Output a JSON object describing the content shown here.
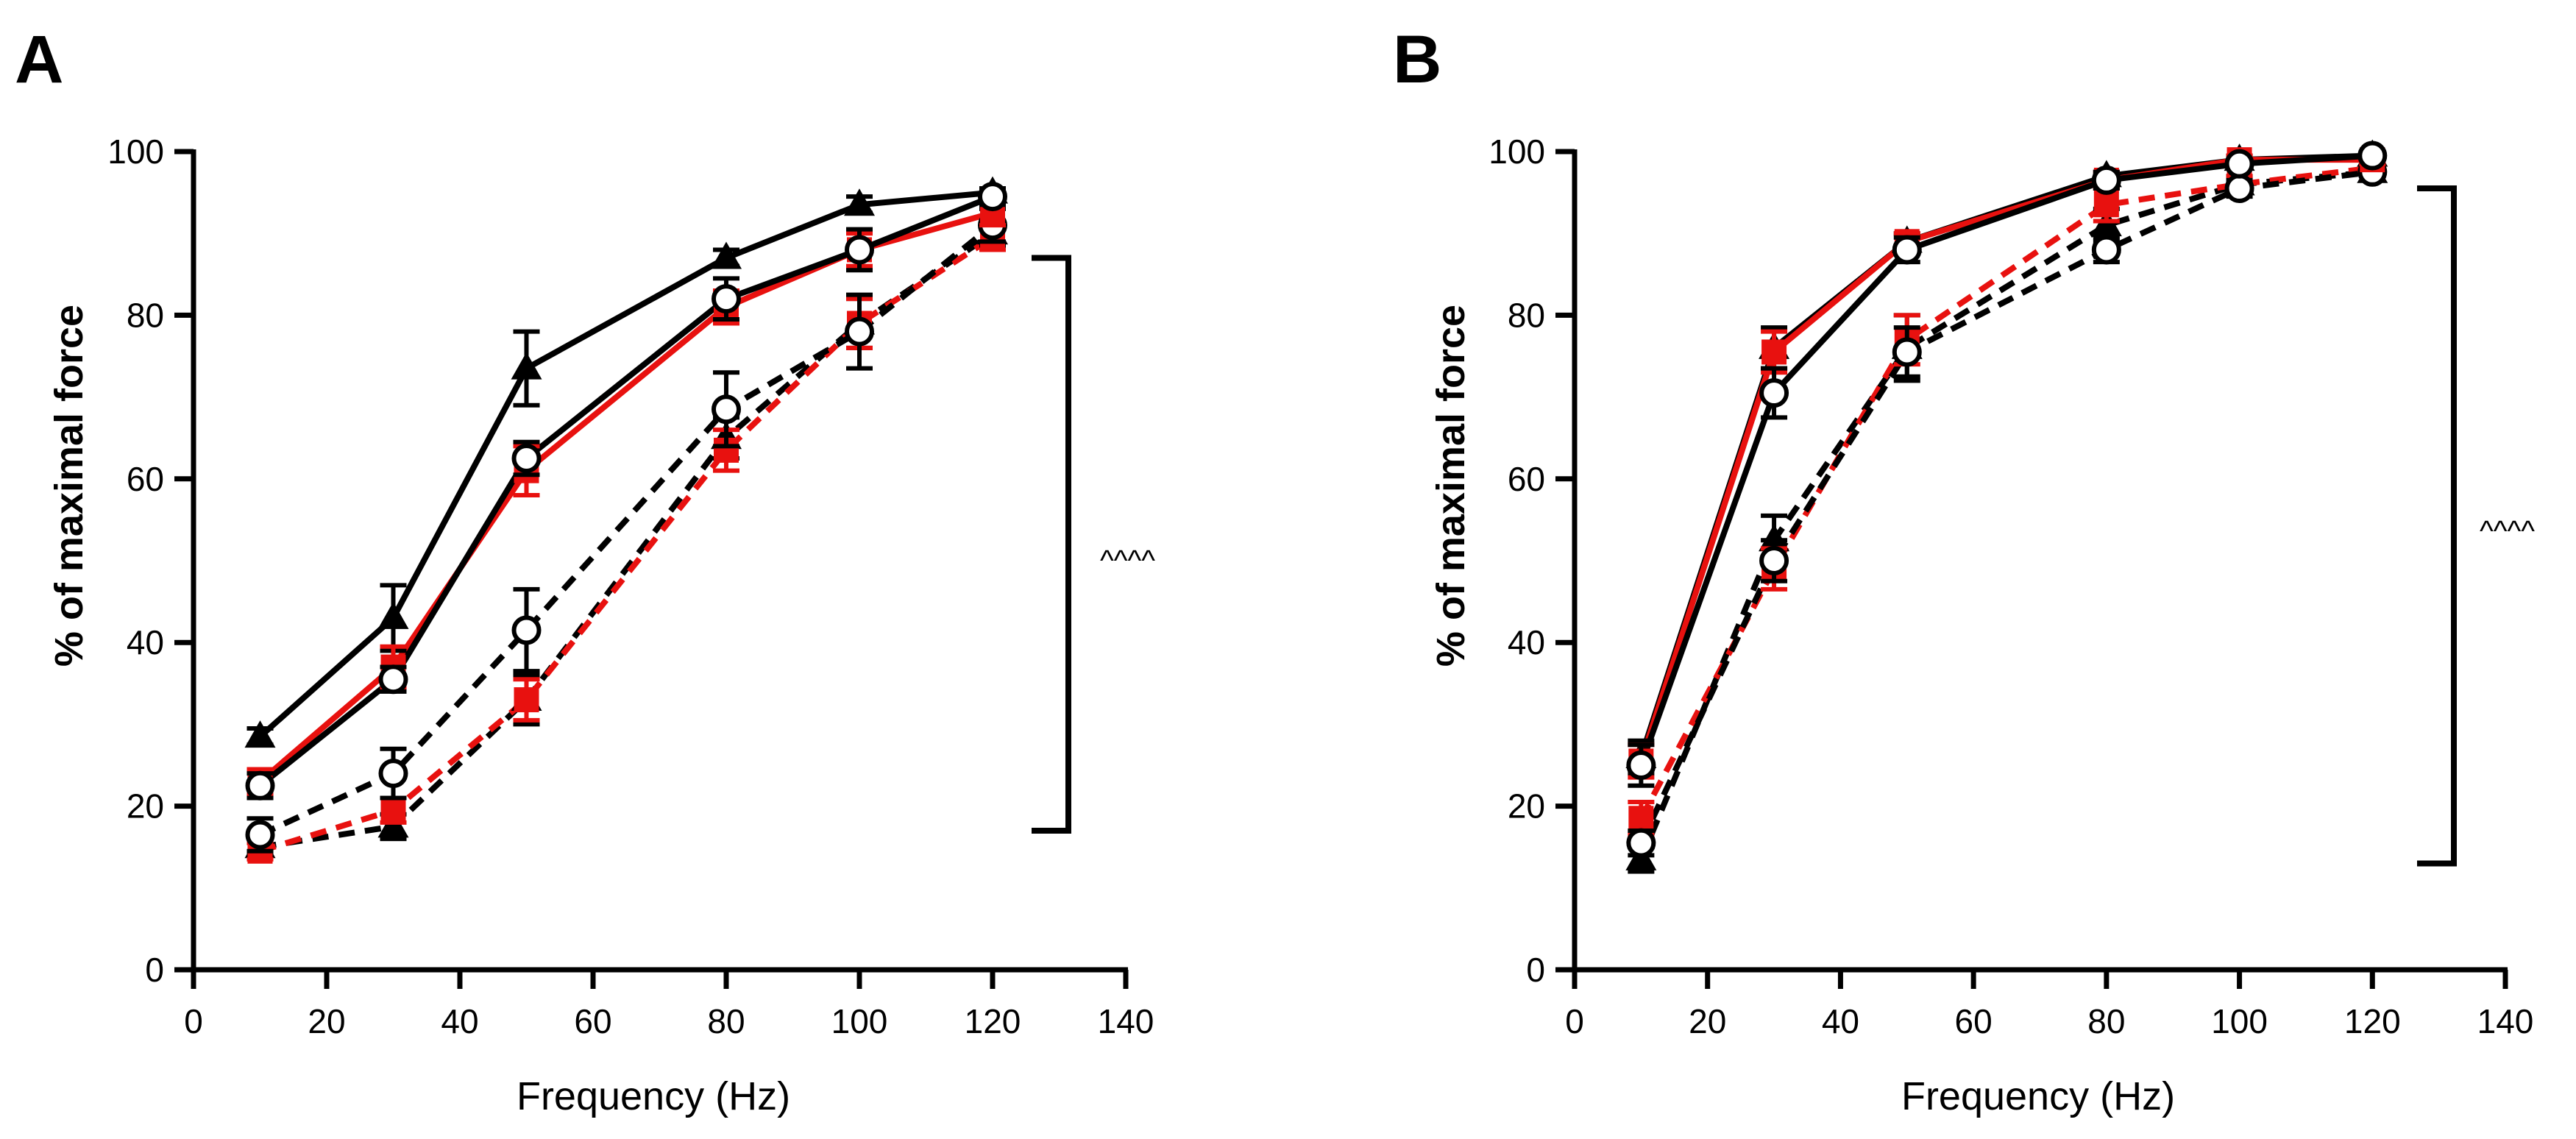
{
  "chart_data": [
    {
      "panel": "A",
      "type": "line",
      "xlabel": "Frequency (Hz)",
      "ylabel": "% of maximal force",
      "xlim": [
        0,
        140
      ],
      "ylim": [
        0,
        100
      ],
      "xticks": [
        0,
        20,
        40,
        60,
        80,
        100,
        120,
        140
      ],
      "yticks": [
        0,
        20,
        40,
        60,
        80,
        100
      ],
      "x": [
        10,
        30,
        50,
        80,
        100,
        120
      ],
      "annotation": {
        "text": "^^^^",
        "bracket_y": [
          17,
          87
        ]
      },
      "series": [
        {
          "color": "#000000",
          "dash": "solid",
          "marker": "triangle",
          "values": [
            28.5,
            43,
            73.5,
            87,
            93.5,
            95
          ],
          "err": [
            1,
            4,
            4.5,
            1,
            1,
            0.5
          ]
        },
        {
          "color": "#e8110f",
          "dash": "solid",
          "marker": "square",
          "values": [
            23,
            37,
            61,
            81,
            88,
            92.5
          ],
          "err": [
            1.5,
            2.5,
            3,
            2,
            2,
            1.5
          ]
        },
        {
          "color": "#000000",
          "dash": "solid",
          "marker": "circle",
          "values": [
            22.5,
            35.5,
            62.5,
            82,
            88,
            94.5
          ],
          "err": [
            1.5,
            1.5,
            2,
            2.5,
            2.5,
            1
          ]
        },
        {
          "color": "#000000",
          "dash": "dashed",
          "marker": "triangle",
          "values": [
            15,
            17.5,
            33,
            65,
            79,
            90
          ],
          "err": [
            1,
            1.5,
            3,
            2.5,
            3,
            1.5
          ]
        },
        {
          "color": "#e8110f",
          "dash": "dashed",
          "marker": "square",
          "values": [
            14.5,
            19.5,
            33,
            63.5,
            79,
            89.5
          ],
          "err": [
            1,
            1.5,
            2.5,
            2.5,
            3,
            1.5
          ]
        },
        {
          "color": "#000000",
          "dash": "dashed",
          "marker": "circle",
          "values": [
            16.5,
            24,
            41.5,
            68.5,
            78,
            91
          ],
          "err": [
            2,
            3,
            5,
            4.5,
            4.5,
            2
          ]
        }
      ]
    },
    {
      "panel": "B",
      "type": "line",
      "xlabel": "Frequency (Hz)",
      "ylabel": "% of maximal force",
      "xlim": [
        0,
        140
      ],
      "ylim": [
        0,
        100
      ],
      "xticks": [
        0,
        20,
        40,
        60,
        80,
        100,
        120,
        140
      ],
      "yticks": [
        0,
        20,
        40,
        60,
        80,
        100
      ],
      "x": [
        10,
        30,
        50,
        80,
        100,
        120
      ],
      "annotation": {
        "text": "^^^^",
        "bracket_y": [
          13,
          95.5
        ]
      },
      "series": [
        {
          "color": "#000000",
          "dash": "solid",
          "marker": "triangle",
          "values": [
            26,
            76,
            89,
            97,
            99,
            99.5
          ],
          "err": [
            2,
            2.5,
            1,
            0.5,
            0.5,
            0.3
          ]
        },
        {
          "color": "#e8110f",
          "dash": "solid",
          "marker": "square",
          "values": [
            25.5,
            75.5,
            89,
            96.5,
            99,
            99
          ],
          "err": [
            2,
            2.5,
            1,
            1,
            0.5,
            0.5
          ]
        },
        {
          "color": "#000000",
          "dash": "solid",
          "marker": "circle",
          "values": [
            25,
            70.5,
            88,
            96.5,
            98.5,
            99.5
          ],
          "err": [
            2.5,
            3,
            1.5,
            1,
            0.5,
            0.3
          ]
        },
        {
          "color": "#000000",
          "dash": "dashed",
          "marker": "triangle",
          "values": [
            13.5,
            52.5,
            76,
            91,
            96,
            97.5
          ],
          "err": [
            1.5,
            3,
            4,
            2,
            1,
            0.5
          ]
        },
        {
          "color": "#e8110f",
          "dash": "dashed",
          "marker": "square",
          "values": [
            18.5,
            49,
            77,
            93.5,
            96,
            98
          ],
          "err": [
            2,
            2.5,
            3,
            2,
            1,
            0.5
          ]
        },
        {
          "color": "#000000",
          "dash": "dashed",
          "marker": "circle",
          "values": [
            15.5,
            50,
            75.5,
            88,
            95.5,
            97.5
          ],
          "err": [
            1.5,
            2.5,
            3,
            1.5,
            1,
            0.5
          ]
        }
      ]
    }
  ]
}
